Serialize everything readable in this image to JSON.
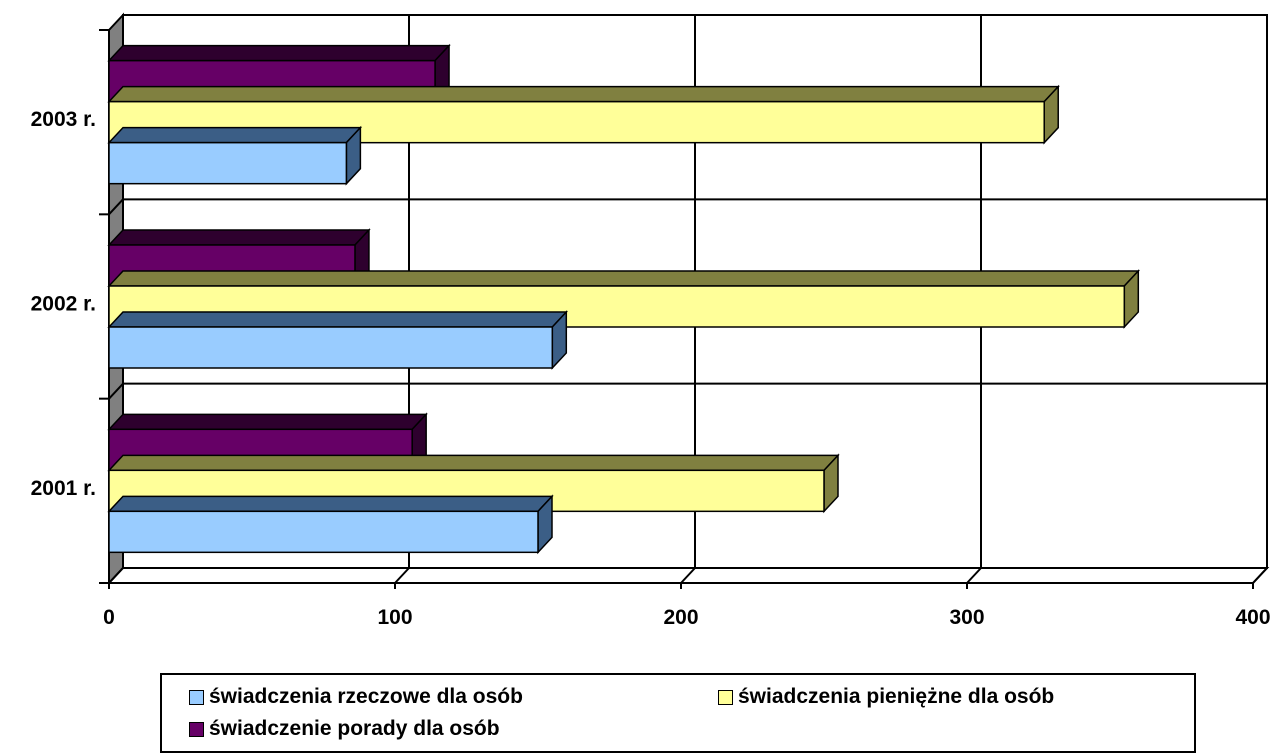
{
  "chart_data": {
    "type": "bar",
    "orientation": "horizontal",
    "style": "3d",
    "categories": [
      "2001 r.",
      "2002 r.",
      "2003 r."
    ],
    "series": [
      {
        "name": "świadczenia rzeczowe dla osób",
        "values": [
          150,
          155,
          83
        ],
        "color": "#99CCFF",
        "side_color": "#3B5E86"
      },
      {
        "name": "świadczenia pieniężne dla osób",
        "values": [
          250,
          355,
          327
        ],
        "color": "#FFFF99",
        "side_color": "#808040"
      },
      {
        "name": "świadczenie porady dla osób",
        "values": [
          106,
          86,
          114
        ],
        "color": "#660066",
        "side_color": "#2E002E"
      }
    ],
    "xlim": [
      0,
      400
    ],
    "xticks": [
      0,
      100,
      200,
      300,
      400
    ],
    "xtick_labels": [
      "0",
      "100",
      "200",
      "300",
      "400"
    ],
    "grid": true,
    "legend": "bottom",
    "wall_color": "#808080"
  }
}
